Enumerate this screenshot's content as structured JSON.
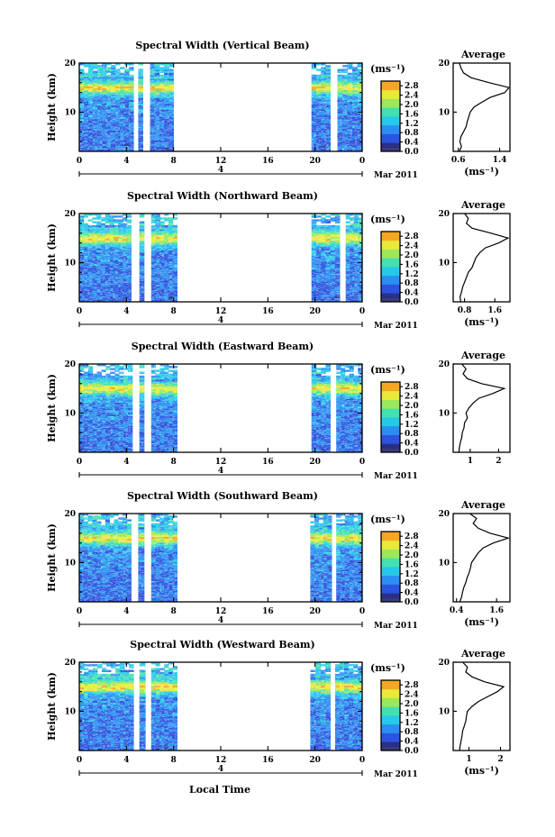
{
  "figure": {
    "common": {
      "time_ticks": [
        "0",
        "4",
        "8",
        "12",
        "16",
        "20",
        "0"
      ],
      "date_day": "4",
      "date_label": "Mar 2011",
      "height_ticks": [
        "10",
        "20"
      ],
      "ylabel": "Height (km)",
      "xlabel": "Local Time",
      "colorbar_unit": "(ms⁻¹)",
      "colorbar_ticks": [
        "0.0",
        "0.4",
        "0.8",
        "1.2",
        "1.6",
        "2.0",
        "2.4",
        "2.8"
      ],
      "avg_title": "Average",
      "avg_xlabel": "(ms⁻¹)"
    },
    "colors": {
      "scale": [
        "#2a2f86",
        "#2b55e0",
        "#2a8ff0",
        "#27c8ea",
        "#44e0b0",
        "#9be85a",
        "#e8e93a",
        "#f5a623",
        "#ef3b2a"
      ]
    }
  },
  "chart_data": [
    {
      "type": "heatmap",
      "title": "Spectral Width (Vertical Beam)",
      "x_range_hours": [
        0,
        24
      ],
      "y_range_km": [
        2,
        20
      ],
      "color_range": [
        0.0,
        3.0
      ],
      "data_gaps_hours": [
        [
          4.6,
          5.0
        ],
        [
          5.4,
          6.0
        ],
        [
          8.0,
          19.7
        ],
        [
          21.3,
          21.9
        ]
      ],
      "profile_peak_km": 15,
      "average_profile": {
        "xlabel": "(ms⁻¹)",
        "x_ticks": [
          "0.6",
          "1.4"
        ],
        "x_range": [
          0.5,
          1.6
        ],
        "height_km": [
          2,
          3,
          4,
          5,
          6,
          7,
          8,
          9,
          10,
          11,
          12,
          13,
          14,
          15,
          16,
          17,
          18,
          19,
          20
        ],
        "width": [
          0.62,
          0.66,
          0.63,
          0.65,
          0.7,
          0.75,
          0.77,
          0.8,
          0.83,
          0.9,
          1.05,
          1.22,
          1.5,
          1.58,
          1.2,
          0.85,
          0.7,
          0.65,
          0.62
        ]
      }
    },
    {
      "type": "heatmap",
      "title": "Spectral Width (Northward Beam)",
      "x_range_hours": [
        0,
        24
      ],
      "y_range_km": [
        2,
        20
      ],
      "color_range": [
        0.0,
        3.0
      ],
      "data_gaps_hours": [
        [
          4.4,
          5.1
        ],
        [
          5.5,
          6.1
        ],
        [
          8.3,
          19.7
        ],
        [
          22.1,
          22.6
        ]
      ],
      "profile_peak_km": 15,
      "average_profile": {
        "xlabel": "(ms⁻¹)",
        "x_ticks": [
          "0.8",
          "1.6"
        ],
        "x_range": [
          0.5,
          2.0
        ],
        "height_km": [
          2,
          3,
          4,
          5,
          6,
          7,
          8,
          9,
          10,
          11,
          12,
          13,
          14,
          15,
          16,
          17,
          18,
          19,
          20
        ],
        "width": [
          0.7,
          0.68,
          0.72,
          0.75,
          0.8,
          0.85,
          0.9,
          1.0,
          1.05,
          1.1,
          1.2,
          1.35,
          1.7,
          1.95,
          1.5,
          1.0,
          0.85,
          0.9,
          0.8
        ]
      }
    },
    {
      "type": "heatmap",
      "title": "Spectral Width (Eastward Beam)",
      "x_range_hours": [
        0,
        24
      ],
      "y_range_km": [
        2,
        20
      ],
      "color_range": [
        0.0,
        3.0
      ],
      "data_gaps_hours": [
        [
          4.5,
          5.1
        ],
        [
          5.5,
          6.1
        ],
        [
          8.3,
          19.7
        ],
        [
          21.3,
          21.8
        ]
      ],
      "profile_peak_km": 15,
      "average_profile": {
        "xlabel": "",
        "x_ticks": [
          "1",
          "2"
        ],
        "x_range": [
          0.4,
          2.4
        ],
        "height_km": [
          2,
          3,
          4,
          5,
          6,
          7,
          8,
          9,
          10,
          11,
          12,
          13,
          14,
          15,
          16,
          17,
          18,
          19,
          20
        ],
        "width": [
          0.6,
          0.62,
          0.65,
          0.7,
          0.72,
          0.78,
          0.8,
          0.9,
          0.85,
          0.95,
          1.1,
          1.3,
          1.8,
          2.2,
          1.4,
          0.9,
          0.75,
          0.85,
          0.7
        ]
      }
    },
    {
      "type": "heatmap",
      "title": "Spectral Width (Southward Beam)",
      "x_range_hours": [
        0,
        24
      ],
      "y_range_km": [
        2,
        20
      ],
      "color_range": [
        0.0,
        3.0
      ],
      "data_gaps_hours": [
        [
          4.4,
          5.0
        ],
        [
          5.5,
          6.1
        ],
        [
          8.3,
          19.6
        ],
        [
          21.4,
          21.8
        ]
      ],
      "profile_peak_km": 15,
      "average_profile": {
        "xlabel": "(ms⁻¹)",
        "x_ticks": [
          "0.4",
          "1.6"
        ],
        "x_range": [
          0.3,
          2.0
        ],
        "height_km": [
          2,
          3,
          4,
          5,
          6,
          7,
          8,
          9,
          10,
          11,
          12,
          13,
          14,
          15,
          16,
          17,
          18,
          19,
          20
        ],
        "width": [
          0.5,
          0.55,
          0.58,
          0.62,
          0.68,
          0.72,
          0.78,
          0.82,
          0.85,
          0.95,
          1.05,
          1.2,
          1.5,
          1.95,
          1.4,
          1.05,
          0.9,
          1.0,
          0.8
        ]
      }
    },
    {
      "type": "heatmap",
      "title": "Spectral Width (Westward Beam)",
      "x_range_hours": [
        0,
        24
      ],
      "y_range_km": [
        2,
        20
      ],
      "color_range": [
        0.0,
        3.0
      ],
      "data_gaps_hours": [
        [
          4.6,
          5.1
        ],
        [
          5.6,
          6.1
        ],
        [
          8.3,
          19.6
        ],
        [
          21.3,
          21.7
        ]
      ],
      "profile_peak_km": 15,
      "average_profile": {
        "xlabel": "(ms⁻¹)",
        "x_ticks": [
          "1",
          "2"
        ],
        "x_range": [
          0.5,
          2.3
        ],
        "height_km": [
          2,
          3,
          4,
          5,
          6,
          7,
          8,
          9,
          10,
          11,
          12,
          13,
          14,
          15,
          16,
          17,
          18,
          19,
          20
        ],
        "width": [
          0.7,
          0.72,
          0.75,
          0.78,
          0.8,
          0.85,
          0.9,
          0.92,
          0.95,
          1.1,
          1.3,
          1.6,
          1.9,
          2.1,
          1.5,
          1.1,
          0.9,
          0.95,
          0.8
        ]
      }
    }
  ]
}
